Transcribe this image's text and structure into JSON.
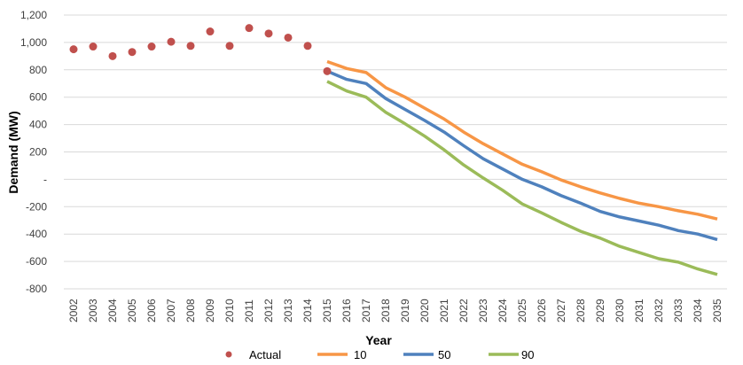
{
  "chart_data": {
    "type": "line",
    "xlabel": "Year",
    "ylabel": "Demand (MW)",
    "x": [
      2002,
      2003,
      2004,
      2005,
      2006,
      2007,
      2008,
      2009,
      2010,
      2011,
      2012,
      2013,
      2014,
      2015,
      2016,
      2017,
      2018,
      2019,
      2020,
      2021,
      2022,
      2023,
      2024,
      2025,
      2026,
      2027,
      2028,
      2029,
      2030,
      2031,
      2032,
      2033,
      2034,
      2035
    ],
    "ylim": [
      -800,
      1200
    ],
    "yticks": [
      -800,
      -600,
      -400,
      -200,
      0,
      200,
      400,
      600,
      800,
      1000,
      1200
    ],
    "ytick_labels": [
      "-800",
      "-600",
      "-400",
      "-200",
      "-",
      "200",
      "400",
      "600",
      "800",
      "1,000",
      "1,200"
    ],
    "grid": "horizontal",
    "legend": "bottom",
    "series": [
      {
        "name": "Actual",
        "kind": "scatter",
        "color": "#C0504D",
        "x": [
          2002,
          2003,
          2004,
          2005,
          2006,
          2007,
          2008,
          2009,
          2010,
          2011,
          2012,
          2013,
          2014,
          2015
        ],
        "values": [
          950,
          970,
          900,
          930,
          970,
          1005,
          975,
          1080,
          975,
          1105,
          1065,
          1035,
          975,
          790
        ]
      },
      {
        "name": "10",
        "kind": "line",
        "color": "#F79646",
        "x": [
          2015,
          2016,
          2017,
          2018,
          2019,
          2020,
          2021,
          2022,
          2023,
          2024,
          2025,
          2026,
          2027,
          2028,
          2029,
          2030,
          2031,
          2032,
          2033,
          2034,
          2035
        ],
        "values": [
          860,
          810,
          780,
          670,
          600,
          520,
          440,
          345,
          260,
          185,
          110,
          55,
          -5,
          -55,
          -100,
          -140,
          -175,
          -200,
          -230,
          -255,
          -290
        ]
      },
      {
        "name": "50",
        "kind": "line",
        "color": "#4F81BD",
        "x": [
          2015,
          2016,
          2017,
          2018,
          2019,
          2020,
          2021,
          2022,
          2023,
          2024,
          2025,
          2026,
          2027,
          2028,
          2029,
          2030,
          2031,
          2032,
          2033,
          2034,
          2035
        ],
        "values": [
          790,
          730,
          700,
          590,
          510,
          430,
          345,
          245,
          150,
          75,
          0,
          -55,
          -120,
          -175,
          -235,
          -275,
          -305,
          -335,
          -375,
          -400,
          -440
        ]
      },
      {
        "name": "90",
        "kind": "line",
        "color": "#9BBB59",
        "x": [
          2015,
          2016,
          2017,
          2018,
          2019,
          2020,
          2021,
          2022,
          2023,
          2024,
          2025,
          2026,
          2027,
          2028,
          2029,
          2030,
          2031,
          2032,
          2033,
          2034,
          2035
        ],
        "values": [
          715,
          645,
          600,
          490,
          405,
          315,
          215,
          105,
          10,
          -80,
          -180,
          -245,
          -315,
          -380,
          -430,
          -490,
          -535,
          -580,
          -605,
          -655,
          -695
        ]
      }
    ]
  }
}
